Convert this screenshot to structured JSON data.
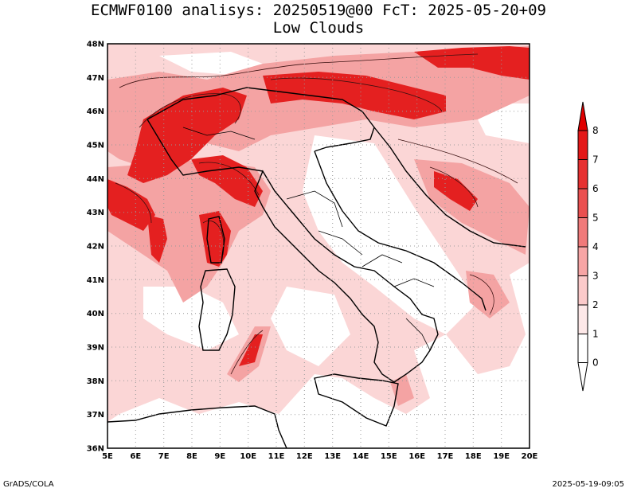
{
  "title": {
    "line1": "ECMWF0100 analisys: 20250519@00 FcT: 2025-05-20+09",
    "line2": "Low Clouds"
  },
  "footer": {
    "left": "GrADS/COLA",
    "right": "2025-05-19-09:05"
  },
  "map": {
    "lon_labels": [
      "5E",
      "6E",
      "7E",
      "8E",
      "9E",
      "10E",
      "11E",
      "12E",
      "13E",
      "14E",
      "15E",
      "16E",
      "17E",
      "18E",
      "19E",
      "20E"
    ],
    "lat_labels": [
      "48N",
      "47N",
      "46N",
      "45N",
      "44N",
      "43N",
      "42N",
      "41N",
      "40N",
      "39N",
      "38N",
      "37N",
      "36N"
    ],
    "lon_range": [
      5,
      20
    ],
    "lat_range": [
      36,
      48
    ]
  },
  "colorbar": {
    "levels": [
      "0",
      "1",
      "2",
      "3",
      "4",
      "5",
      "6",
      "7",
      "8"
    ],
    "colors": [
      "#fde8e8",
      "#fbcaca",
      "#f7a5a5",
      "#f07a7a",
      "#ea5050",
      "#e63030",
      "#e41818",
      "#e00000"
    ]
  },
  "colors": {
    "cloud_light": "#fbd3d3",
    "cloud_mid": "#f08080",
    "cloud_dark": "#e41a1a",
    "sea_grid": "#999999"
  }
}
